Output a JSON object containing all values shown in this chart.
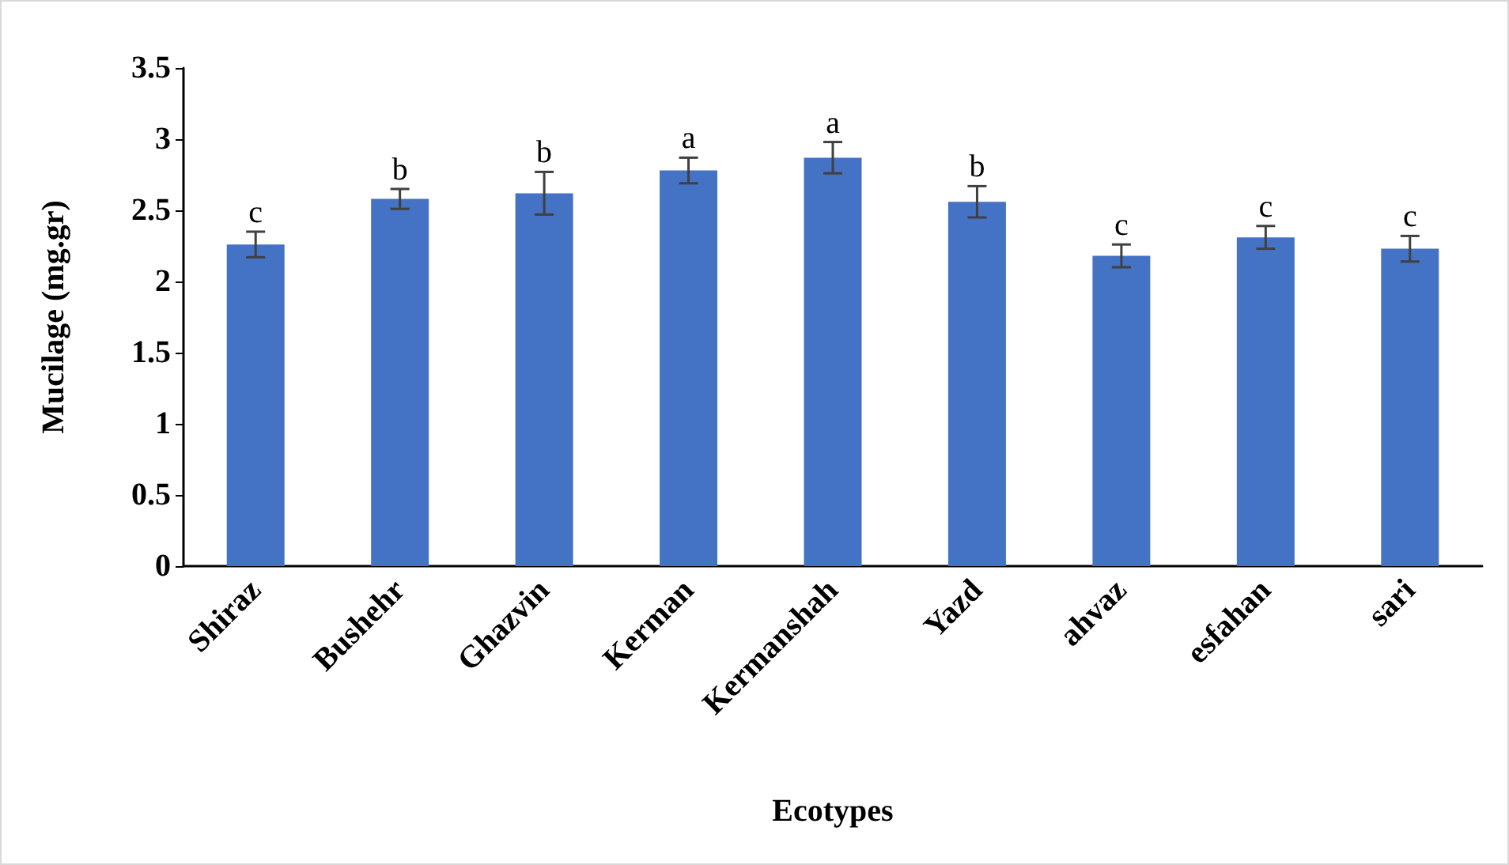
{
  "chart_data": {
    "type": "bar",
    "xlabel": "Ecotypes",
    "ylabel": "Mucilage (mg.gr)",
    "categories": [
      "Shiraz",
      "Bushehr",
      "Ghazvin",
      "Kerman",
      "Kermanshah",
      "Yazd",
      "ahvaz",
      "esfahan",
      "sari"
    ],
    "values": [
      2.26,
      2.58,
      2.62,
      2.78,
      2.87,
      2.56,
      2.18,
      2.31,
      2.23
    ],
    "errors": [
      0.09,
      0.07,
      0.15,
      0.09,
      0.11,
      0.11,
      0.08,
      0.08,
      0.09
    ],
    "color": "#4472c4",
    "ylim": [
      0,
      3.5
    ],
    "yticks": [
      0,
      0.5,
      1,
      1.5,
      2,
      2.5,
      3,
      3.5
    ],
    "grid": false,
    "annotations": [
      {
        "text": "c",
        "x": "Shiraz",
        "y": 2.35
      },
      {
        "text": "b",
        "x": "Bushehr",
        "y": 2.65
      },
      {
        "text": "b",
        "x": "Ghazvin",
        "y": 2.77
      },
      {
        "text": "a",
        "x": "Kerman",
        "y": 2.87
      },
      {
        "text": "a",
        "x": "Kermanshah",
        "y": 2.98
      },
      {
        "text": "b",
        "x": "Yazd",
        "y": 2.67
      },
      {
        "text": "c",
        "x": "ahvaz",
        "y": 2.26
      },
      {
        "text": "c",
        "x": "esfahan",
        "y": 2.39
      },
      {
        "text": "c",
        "x": "sari",
        "y": 2.32
      }
    ]
  }
}
